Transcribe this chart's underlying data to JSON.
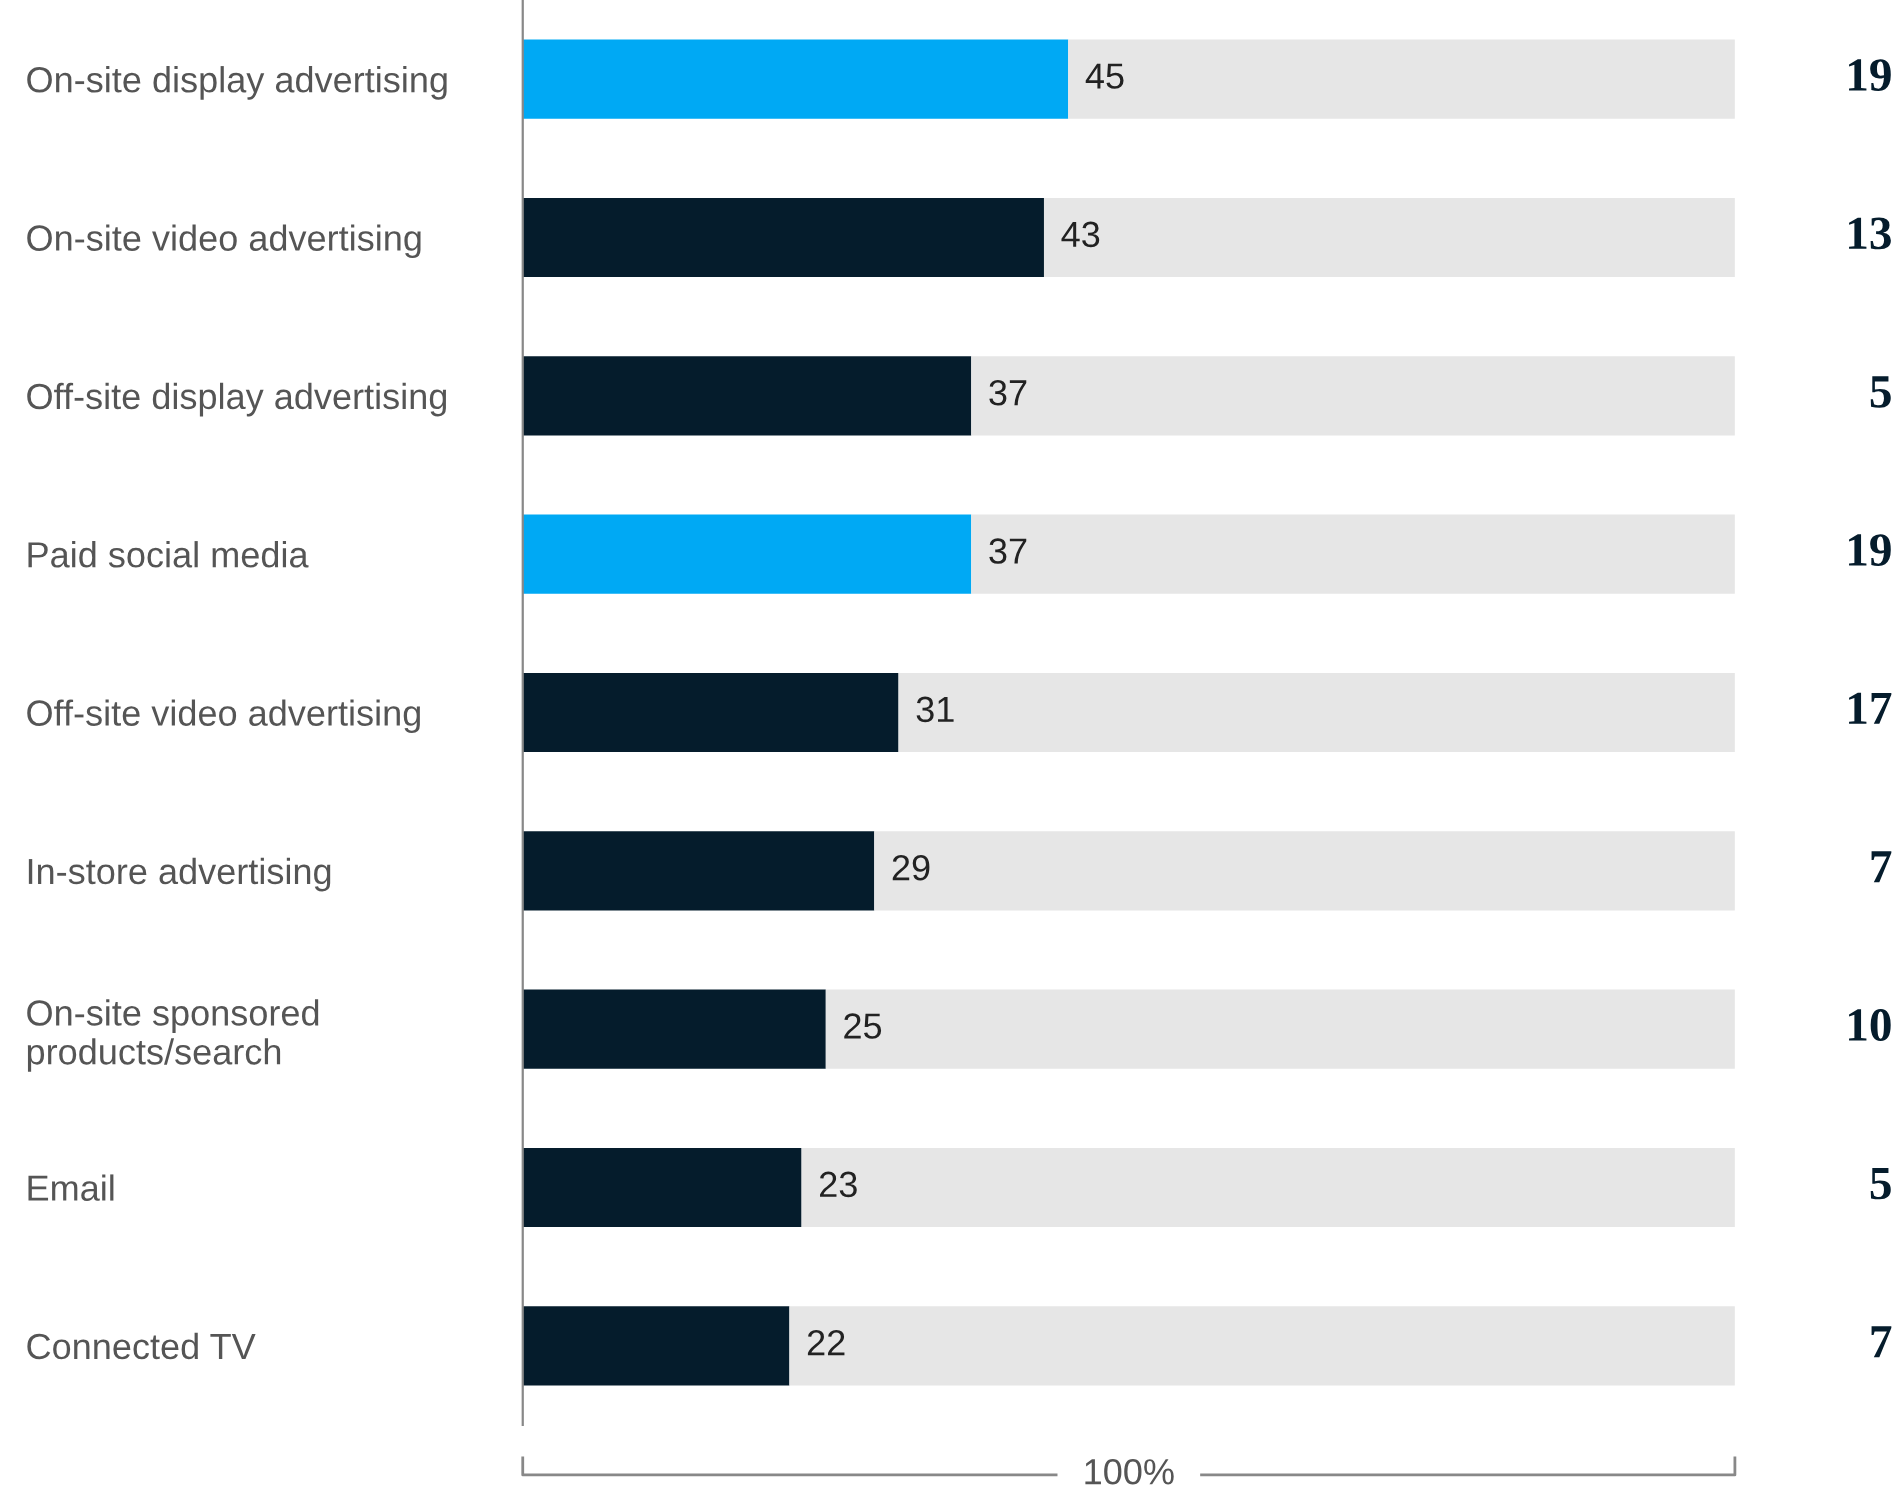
{
  "chart_data": {
    "type": "bar",
    "orientation": "horizontal",
    "stacked": true,
    "xlabel": "100%",
    "xlim": [
      0,
      100
    ],
    "tick_labels": "y",
    "grid": false,
    "legend": false,
    "categories": [
      "On-site display advertising",
      "On-site video advertising",
      "Off-site display advertising",
      "Paid social media",
      "Off-site video advertising",
      "In-store advertising",
      "On-site sponsored\nproducts/search",
      "Email",
      "Connected TV"
    ],
    "series": [
      {
        "colors": [
          "#00a9f4",
          "#051c2c",
          "#051c2c",
          "#00a9f4",
          "#051c2c",
          "#051c2c",
          "#051c2c",
          "#051c2c",
          "#051c2c"
        ],
        "values": [
          45,
          43,
          37,
          37,
          31,
          29,
          25,
          23,
          22
        ],
        "value_labels": [
          "45",
          "43",
          "37",
          "37",
          "31",
          "29",
          "25",
          "23",
          "22"
        ]
      },
      {
        "color": "#e6e6e6",
        "values": [
          55,
          57,
          63,
          63,
          69,
          71,
          75,
          77,
          78
        ]
      }
    ],
    "annotations": [
      "19",
      "13",
      "5",
      "19",
      "17",
      "7",
      "10",
      "5",
      "7"
    ]
  }
}
